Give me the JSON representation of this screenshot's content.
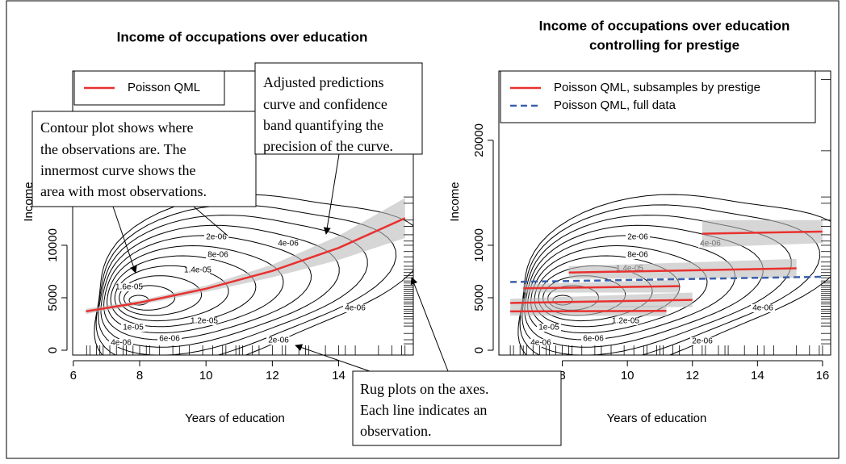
{
  "chart_data": [
    {
      "type": "line",
      "title": [
        "Income of occupations over education"
      ],
      "xlabel": "Years of education",
      "ylabel": "Income",
      "xlim": [
        5.98,
        16.25
      ],
      "ylim": [
        -460,
        26600
      ],
      "xticks": [
        6,
        8,
        10,
        12,
        14
      ],
      "yticks": [
        0,
        5000,
        10000
      ],
      "legend": "topleft",
      "series": [
        {
          "name": "Poisson QML",
          "color": "#e8312f",
          "dash": false,
          "x": [
            6.38,
            8,
            10,
            12,
            14,
            16
          ],
          "values": [
            3700,
            4540,
            5860,
            7560,
            9750,
            12580
          ],
          "lower": [
            3450,
            4330,
            5560,
            6950,
            8600,
            10700
          ],
          "upper": [
            3950,
            4750,
            6150,
            8150,
            10900,
            14500
          ]
        }
      ],
      "contour_labels": [
        "2e-06",
        "4e-06",
        "8e-06",
        "1.4e-05",
        "1.6e-05",
        "1e-05",
        "1.2e-05",
        "6e-06",
        "4e-06",
        "2e-06",
        "4e-06"
      ],
      "rug_x": [
        6.4,
        6.5,
        6.7,
        6.8,
        6.9,
        7.1,
        7.3,
        7.5,
        7.6,
        7.8,
        8.0,
        8.2,
        8.3,
        8.6,
        9.0,
        9.2,
        9.5,
        9.9,
        10.2,
        10.5,
        10.6,
        10.9,
        11.0,
        11.1,
        11.4,
        11.6,
        12.0,
        12.3,
        12.4,
        12.8,
        13.0,
        13.1,
        13.6,
        14.0,
        14.2,
        14.5,
        15.2,
        15.6,
        15.9,
        16.0
      ],
      "rug_y": [
        611,
        1000,
        1600,
        2300,
        2600,
        3000,
        3200,
        3500,
        3700,
        3900,
        4200,
        4400,
        4600,
        4800,
        5000,
        5200,
        5400,
        5600,
        5800,
        6000,
        6200,
        6400,
        6600,
        6900,
        7100,
        7400,
        7700,
        8000,
        8400,
        8900,
        9400,
        10000,
        10400,
        11000,
        11800,
        12400,
        14000,
        14600,
        19000,
        25800
      ]
    },
    {
      "type": "line",
      "title": [
        "Income of occupations over education",
        "controlling for prestige"
      ],
      "xlabel": "Years of education",
      "ylabel": "Income",
      "xlim": [
        6.05,
        16.25
      ],
      "ylim": [
        -460,
        26600
      ],
      "xticks": [
        8,
        10,
        12,
        14,
        16
      ],
      "yticks": [
        0,
        5000,
        10000,
        20000
      ],
      "legend": "topleft",
      "series": [
        {
          "name": "Poisson QML, subsamples by prestige",
          "color": "#e8312f",
          "dash": false,
          "x": [
            6.4,
            11.2,
            null,
            6.4,
            12.0,
            null,
            6.8,
            11.6,
            null,
            8.2,
            15.2,
            null,
            12.3,
            16.0
          ],
          "values": [
            3700,
            3750,
            null,
            4500,
            4800,
            null,
            5900,
            6100,
            null,
            7400,
            7800,
            null,
            11100,
            11300
          ],
          "lower": [
            3300,
            3250,
            null,
            4100,
            4100,
            null,
            5500,
            5500,
            null,
            6800,
            6900,
            null,
            9800,
            10200
          ],
          "upper": [
            4100,
            4250,
            null,
            4900,
            5500,
            null,
            6300,
            6700,
            null,
            8000,
            8700,
            null,
            12400,
            12400
          ]
        },
        {
          "name": "Poisson QML, full data",
          "color": "#3a5fae",
          "dash": true,
          "x": [
            6.4,
            16.0
          ],
          "values": [
            6500,
            7000
          ]
        }
      ],
      "contour_labels": [
        "2e-06",
        "4e-06",
        "8e-06",
        "1.4e-05",
        "1e-05",
        "1.2e-05",
        "6e-06",
        "4e-06",
        "2e-06",
        "4e-06"
      ],
      "rug_x": [
        6.4,
        6.5,
        6.7,
        6.8,
        6.9,
        7.1,
        7.3,
        7.5,
        7.6,
        7.8,
        8.0,
        8.2,
        8.3,
        8.6,
        9.0,
        9.2,
        9.5,
        9.9,
        10.2,
        10.5,
        10.6,
        10.9,
        11.0,
        11.1,
        11.4,
        11.6,
        12.0,
        12.3,
        12.4,
        12.8,
        13.0,
        13.1,
        13.6,
        14.0,
        14.2,
        14.5,
        15.2,
        15.6,
        15.9,
        16.0
      ],
      "rug_y": [
        611,
        1000,
        1600,
        2300,
        2600,
        3000,
        3200,
        3500,
        3700,
        3900,
        4200,
        4400,
        4600,
        4800,
        5000,
        5200,
        5400,
        5600,
        5800,
        6000,
        6200,
        6400,
        6600,
        6900,
        7100,
        7400,
        7700,
        8000,
        8400,
        8900,
        9400,
        10000,
        10400,
        11000,
        11800,
        12400,
        14000,
        14600,
        19000,
        25800
      ]
    }
  ],
  "annotations": [
    {
      "lines": [
        "Contour plot shows where",
        "the observations are. The",
        "innermost curve shows the",
        "area with most observations."
      ]
    },
    {
      "lines": [
        "Adjusted predictions",
        "curve and confidence",
        "band quantifying the",
        "precision of the curve."
      ]
    },
    {
      "lines": [
        "Rug plots on the axes.",
        "Each line indicates an",
        "observation."
      ]
    }
  ]
}
